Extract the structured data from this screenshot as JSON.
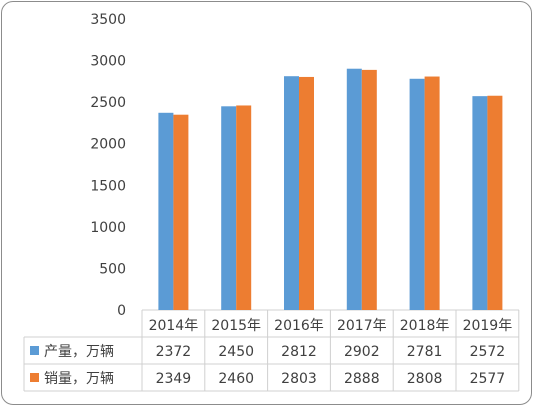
{
  "chart_data": {
    "type": "bar",
    "categories": [
      "2014年",
      "2015年",
      "2016年",
      "2017年",
      "2018年",
      "2019年"
    ],
    "series": [
      {
        "name": "产量，万辆",
        "color": "#5B9BD5",
        "values": [
          2372,
          2450,
          2812,
          2902,
          2781,
          2572
        ]
      },
      {
        "name": "销量，万辆",
        "color": "#ED7D31",
        "values": [
          2349,
          2460,
          2803,
          2888,
          2808,
          2577
        ]
      }
    ],
    "ylim": [
      0,
      3500
    ],
    "yticks": [
      "0",
      "500",
      "1000",
      "1500",
      "2000",
      "2500",
      "3000",
      "3500"
    ],
    "grid": false,
    "legend": "data-table-left"
  }
}
